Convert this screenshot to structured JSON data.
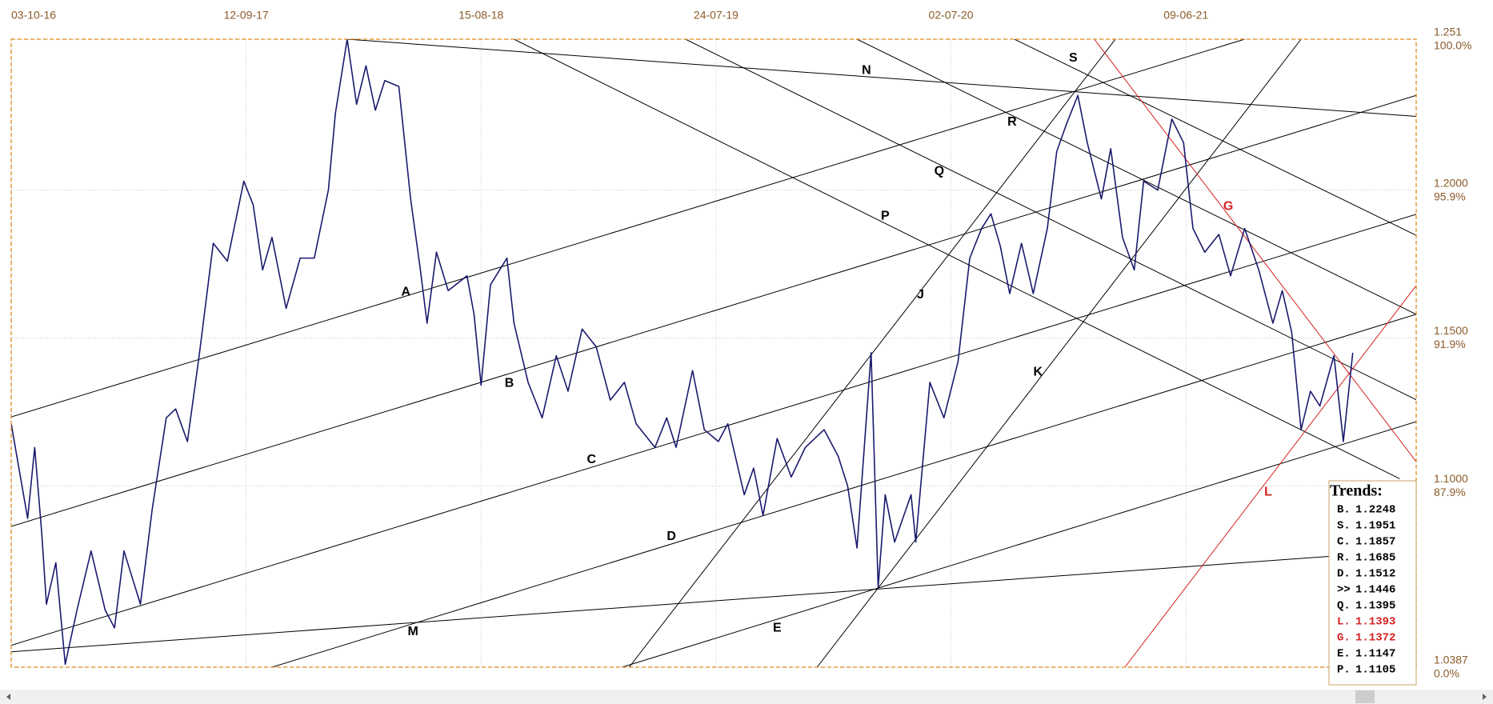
{
  "chart_data": {
    "type": "line",
    "x": [
      0,
      0.07,
      0.1,
      0.13,
      0.15,
      0.19,
      0.23,
      0.28,
      0.34,
      0.4,
      0.44,
      0.48,
      0.55,
      0.6,
      0.66,
      0.7,
      0.75,
      0.8,
      0.86,
      0.92,
      0.99,
      1.03,
      1.07,
      1.11,
      1.17,
      1.23,
      1.29,
      1.35,
      1.38,
      1.43,
      1.47,
      1.51,
      1.55,
      1.59,
      1.65,
      1.7,
      1.74,
      1.77,
      1.81,
      1.86,
      1.94,
      1.97,
      2.0,
      2.04,
      2.11,
      2.14,
      2.2,
      2.26,
      2.32,
      2.37,
      2.43,
      2.49,
      2.55,
      2.61,
      2.66,
      2.74,
      2.79,
      2.83,
      2.9,
      2.95,
      3.01,
      3.05,
      3.12,
      3.16,
      3.2,
      3.26,
      3.32,
      3.38,
      3.46,
      3.52,
      3.56,
      3.6,
      3.66,
      3.69,
      3.72,
      3.76,
      3.83,
      3.85,
      3.91,
      3.97,
      4.03,
      4.08,
      4.13,
      4.17,
      4.21,
      4.25,
      4.3,
      4.35,
      4.41,
      4.45,
      4.49,
      4.54,
      4.58,
      4.64,
      4.68,
      4.73,
      4.78,
      4.82,
      4.88,
      4.94,
      4.99,
      5.03,
      5.08,
      5.14,
      5.19,
      5.25,
      5.31,
      5.37,
      5.41,
      5.45,
      5.49,
      5.53,
      5.57,
      5.63,
      5.67,
      5.71
    ],
    "series": [
      {
        "color": "#1a1a6e",
        "values": [
          1.121,
          1.089,
          1.113,
          1.084,
          1.06,
          1.074,
          1.0397,
          1.058,
          1.078,
          1.058,
          1.052,
          1.078,
          1.06,
          1.092,
          1.123,
          1.126,
          1.115,
          1.144,
          1.182,
          1.176,
          1.203,
          1.195,
          1.173,
          1.184,
          1.16,
          1.177,
          1.177,
          1.2,
          1.226,
          1.251,
          1.229,
          1.242,
          1.227,
          1.237,
          1.235,
          1.197,
          1.174,
          1.155,
          1.179,
          1.166,
          1.171,
          1.158,
          1.134,
          1.168,
          1.177,
          1.155,
          1.135,
          1.123,
          1.144,
          1.132,
          1.153,
          1.147,
          1.129,
          1.135,
          1.121,
          1.113,
          1.123,
          1.113,
          1.139,
          1.119,
          1.115,
          1.121,
          1.097,
          1.106,
          1.09,
          1.116,
          1.103,
          1.113,
          1.119,
          1.11,
          1.1,
          1.079,
          1.145,
          1.0657,
          1.097,
          1.081,
          1.097,
          1.081,
          1.135,
          1.123,
          1.142,
          1.177,
          1.187,
          1.192,
          1.181,
          1.165,
          1.182,
          1.165,
          1.187,
          1.213,
          1.222,
          1.232,
          1.216,
          1.197,
          1.214,
          1.184,
          1.173,
          1.203,
          1.2,
          1.224,
          1.216,
          1.187,
          1.179,
          1.185,
          1.171,
          1.187,
          1.173,
          1.155,
          1.166,
          1.152,
          1.119,
          1.132,
          1.127,
          1.144,
          1.115,
          1.145
        ]
      }
    ],
    "xlim": [
      0,
      5.98
    ],
    "xticks": [
      {
        "value": 0,
        "label": "03-10-16"
      },
      {
        "value": 1,
        "label": "12-09-17"
      },
      {
        "value": 2,
        "label": "15-08-18"
      },
      {
        "value": 3,
        "label": "24-07-19"
      },
      {
        "value": 4,
        "label": "02-07-20"
      },
      {
        "value": 5,
        "label": "09-06-21"
      }
    ],
    "ylim": [
      1.0387,
      1.251
    ],
    "yticks": [
      1.251,
      {
        "value": 1.2,
        "label": "1.2000"
      },
      {
        "value": 1.15,
        "label": "1.1500"
      },
      {
        "value": 1.1,
        "label": "1.1000"
      },
      1.0387
    ],
    "ytick_percent_labels": [
      "100.0%",
      "95.9%",
      "91.9%",
      "87.9%",
      "0.0%"
    ],
    "grid": true,
    "trendlines": [
      {
        "label": "A",
        "color": "#000000",
        "x1": 0,
        "y1": 1.1233,
        "x2": 5.25,
        "y2": 1.251,
        "label_x": 1.68,
        "label_y": 1.1654
      },
      {
        "label": "B",
        "color": "#000000",
        "x1": 0,
        "y1": 1.0863,
        "x2": 5.98,
        "y2": 1.232,
        "label_x": 2.12,
        "label_y": 1.1346
      },
      {
        "label": "C",
        "color": "#000000",
        "x1": 0,
        "y1": 1.0461,
        "x2": 5.98,
        "y2": 1.1918,
        "label_x": 2.47,
        "label_y": 1.1088
      },
      {
        "label": "D",
        "color": "#000000",
        "x1": 1.11,
        "y1": 1.0387,
        "x2": 5.98,
        "y2": 1.158,
        "label_x": 2.81,
        "label_y": 1.0828
      },
      {
        "label": "E",
        "color": "#000000",
        "x1": 2.6,
        "y1": 1.0387,
        "x2": 5.98,
        "y2": 1.1217,
        "label_x": 3.26,
        "label_y": 1.0519
      },
      {
        "label": "M",
        "color": "#000000",
        "x1": 0,
        "y1": 1.0439,
        "x2": 5.98,
        "y2": 1.0783,
        "label_x": 1.71,
        "label_y": 1.0506
      },
      {
        "label": "N",
        "color": "#000000",
        "x1": 1.43,
        "y1": 1.251,
        "x2": 5.98,
        "y2": 1.2249,
        "label_x": 3.64,
        "label_y": 1.2404
      },
      {
        "label": "S",
        "color": "#000000",
        "x1": 4.27,
        "y1": 1.251,
        "x2": 5.98,
        "y2": 1.1847,
        "label_x": 4.52,
        "label_y": 1.2446
      },
      {
        "label": "R",
        "color": "#000000",
        "x1": 3.6,
        "y1": 1.251,
        "x2": 5.98,
        "y2": 1.158,
        "label_x": 4.26,
        "label_y": 1.223
      },
      {
        "label": "Q",
        "color": "#000000",
        "x1": 2.87,
        "y1": 1.251,
        "x2": 5.98,
        "y2": 1.1291,
        "label_x": 3.95,
        "label_y": 1.2063
      },
      {
        "label": "P",
        "color": "#000000",
        "x1": 2.14,
        "y1": 1.251,
        "x2": 5.91,
        "y2": 1.1024,
        "label_x": 3.72,
        "label_y": 1.1912
      },
      {
        "label": "J",
        "color": "#000000",
        "x1": 2.63,
        "y1": 1.0387,
        "x2": 4.7,
        "y2": 1.251,
        "label_x": 3.87,
        "label_y": 1.1645
      },
      {
        "label": "K",
        "color": "#000000",
        "x1": 3.43,
        "y1": 1.0387,
        "x2": 5.49,
        "y2": 1.251,
        "label_x": 4.37,
        "label_y": 1.1384
      },
      {
        "label": "G",
        "color": "#d42020",
        "x1": 4.61,
        "y1": 1.251,
        "x2": 5.98,
        "y2": 1.1082,
        "label_x": 5.18,
        "label_y": 1.1944
      },
      {
        "label": "L",
        "color": "#d42020",
        "x1": 4.74,
        "y1": 1.0387,
        "x2": 5.98,
        "y2": 1.1677,
        "label_x": 5.35,
        "label_y": 1.0979
      }
    ],
    "trends_box": {
      "title": "Trends:",
      "rows": [
        {
          "label": "B.",
          "value": "1.2248",
          "color": "#000000"
        },
        {
          "label": "S.",
          "value": "1.1951",
          "color": "#000000"
        },
        {
          "label": "C.",
          "value": "1.1857",
          "color": "#000000"
        },
        {
          "label": "R.",
          "value": "1.1685",
          "color": "#000000"
        },
        {
          "label": "D.",
          "value": "1.1512",
          "color": "#000000"
        },
        {
          "label": ">>",
          "value": "1.1446",
          "color": "#000000"
        },
        {
          "label": "Q.",
          "value": "1.1395",
          "color": "#000000"
        },
        {
          "label": "L.",
          "value": "1.1393",
          "color": "#d42020"
        },
        {
          "label": "G.",
          "value": "1.1372",
          "color": "#d42020"
        },
        {
          "label": "E.",
          "value": "1.1147",
          "color": "#000000"
        },
        {
          "label": "P.",
          "value": "1.1105",
          "color": "#000000"
        }
      ]
    }
  }
}
